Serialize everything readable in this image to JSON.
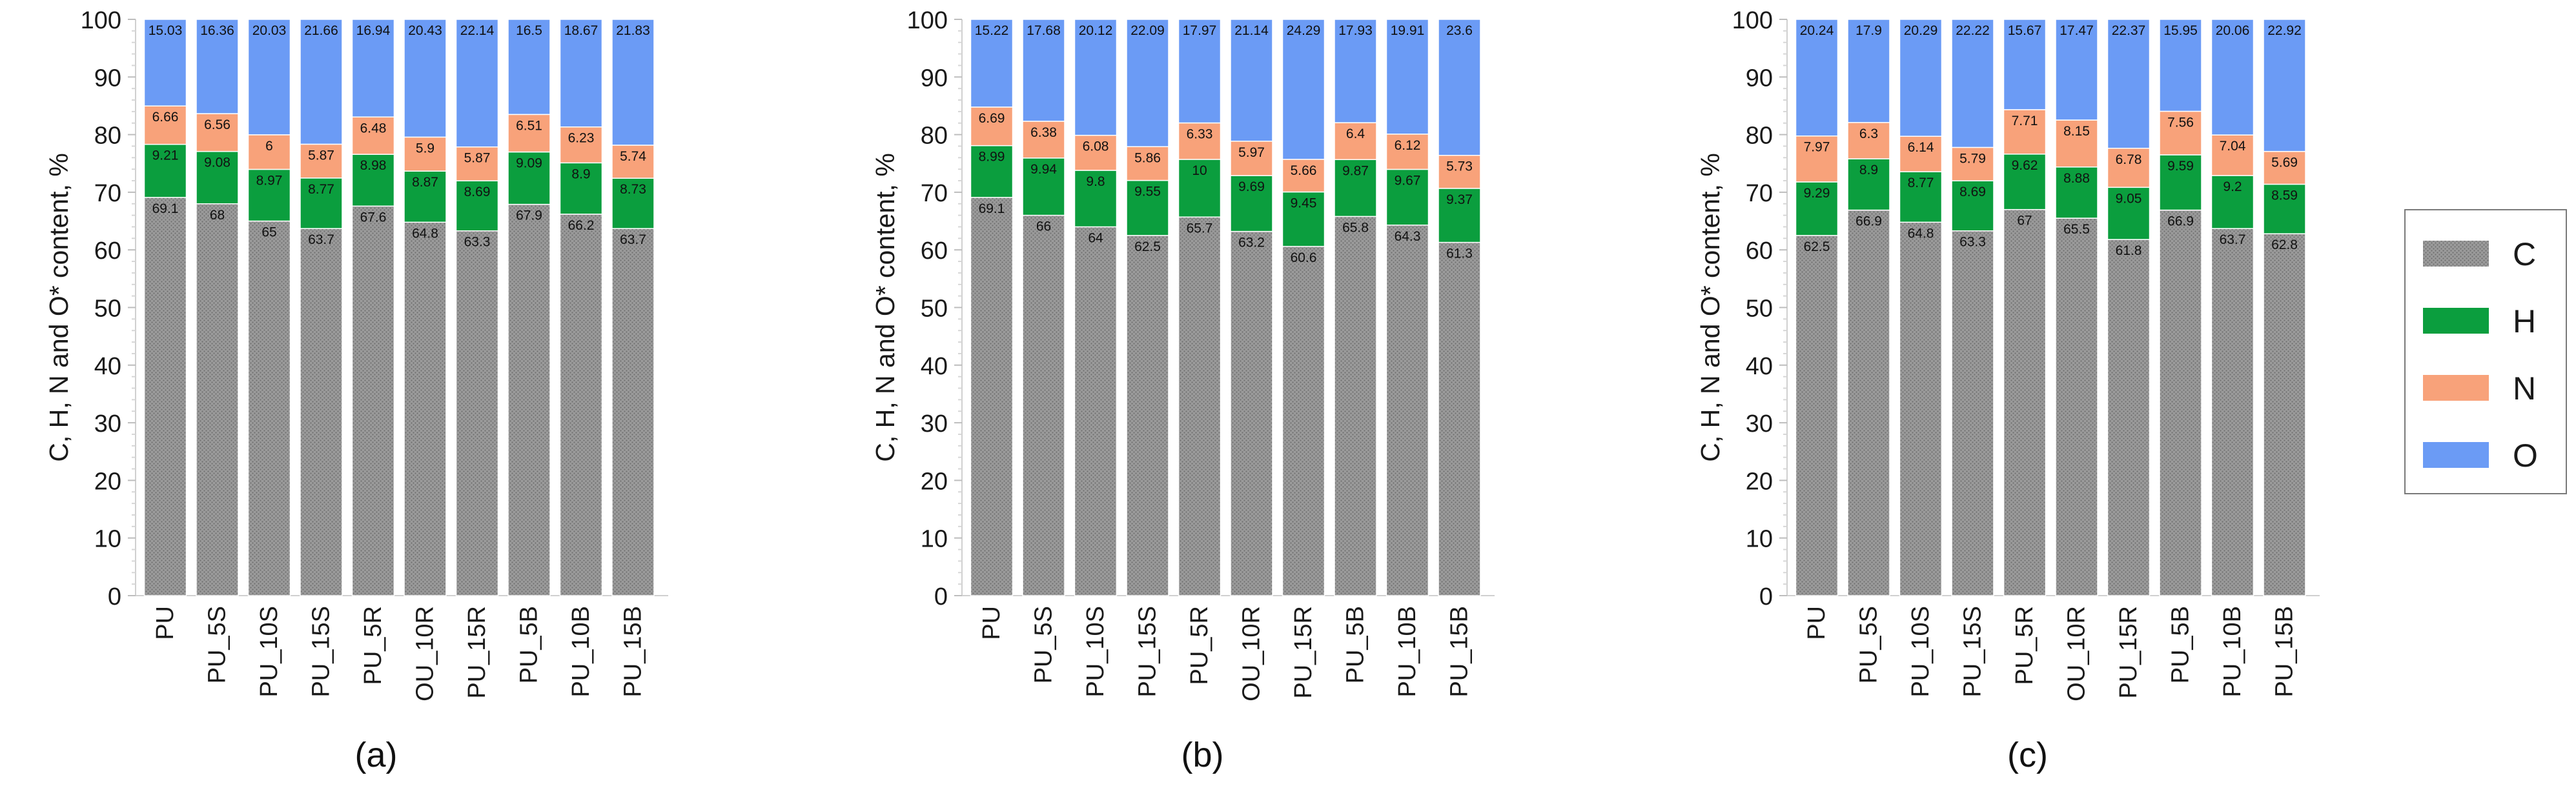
{
  "series_colors": {
    "C": "#999999",
    "H": "#0b9e3e",
    "N": "#f8a27a",
    "O": "#6b9bf5"
  },
  "legend": {
    "items": [
      "C",
      "H",
      "N",
      "O"
    ]
  },
  "chart_data": [
    {
      "type": "bar",
      "stacked": true,
      "panel_label": "(a)",
      "ylabel": "C, H, N and O* content, %",
      "ylim": [
        0,
        100
      ],
      "yticks": [
        0,
        10,
        20,
        30,
        40,
        50,
        60,
        70,
        80,
        90,
        100
      ],
      "categories": [
        "PU",
        "PU_5S",
        "PU_10S",
        "PU_15S",
        "PU_5R",
        "OU_10R",
        "PU_15R",
        "PU_5B",
        "PU_10B",
        "PU_15B"
      ],
      "series": [
        {
          "name": "C",
          "values": [
            69.1,
            68,
            65,
            63.7,
            67.6,
            64.8,
            63.3,
            67.9,
            66.2,
            63.7
          ],
          "labels": [
            "69.1",
            "68",
            "65",
            "63.7",
            "67.6",
            "64.8",
            "63.3",
            "67.9",
            "66.2",
            "63.7"
          ]
        },
        {
          "name": "H",
          "values": [
            9.21,
            9.08,
            8.97,
            8.77,
            8.98,
            8.87,
            8.69,
            9.09,
            8.9,
            8.73
          ],
          "labels": [
            "9.21",
            "9.08",
            "8.97",
            "8.77",
            "8.98",
            "8.87",
            "8.69",
            "9.09",
            "8.9",
            "8.73"
          ]
        },
        {
          "name": "N",
          "values": [
            6.66,
            6.56,
            6,
            5.87,
            6.48,
            5.9,
            5.87,
            6.51,
            6.23,
            5.74
          ],
          "labels": [
            "6.66",
            "6.56",
            "6",
            "5.87",
            "6.48",
            "5.9",
            "5.87",
            "6.51",
            "6.23",
            "5.74"
          ]
        },
        {
          "name": "O",
          "values": [
            15.03,
            16.36,
            20.03,
            21.66,
            16.94,
            20.43,
            22.14,
            16.5,
            18.67,
            21.83
          ],
          "labels": [
            "15.03",
            "16.36",
            "20.03",
            "21.66",
            "16.94",
            "20.43",
            "22.14",
            "16.5",
            "18.67",
            "21.83"
          ]
        }
      ]
    },
    {
      "type": "bar",
      "stacked": true,
      "panel_label": "(b)",
      "ylabel": "C, H, N and O* content, %",
      "ylim": [
        0,
        100
      ],
      "yticks": [
        0,
        10,
        20,
        30,
        40,
        50,
        60,
        70,
        80,
        90,
        100
      ],
      "categories": [
        "PU",
        "PU_5S",
        "PU_10S",
        "PU_15S",
        "PU_5R",
        "OU_10R",
        "PU_15R",
        "PU_5B",
        "PU_10B",
        "PU_15B"
      ],
      "series": [
        {
          "name": "C",
          "values": [
            69.1,
            66,
            64,
            62.5,
            65.7,
            63.2,
            60.6,
            65.8,
            64.3,
            61.3
          ],
          "labels": [
            "69.1",
            "66",
            "64",
            "62.5",
            "65.7",
            "63.2",
            "60.6",
            "65.8",
            "64.3",
            "61.3"
          ]
        },
        {
          "name": "H",
          "values": [
            8.99,
            9.94,
            9.8,
            9.55,
            10,
            9.69,
            9.45,
            9.87,
            9.67,
            9.37
          ],
          "labels": [
            "8.99",
            "9.94",
            "9.8",
            "9.55",
            "10",
            "9.69",
            "9.45",
            "9.87",
            "9.67",
            "9.37"
          ]
        },
        {
          "name": "N",
          "values": [
            6.69,
            6.38,
            6.08,
            5.86,
            6.33,
            5.97,
            5.66,
            6.4,
            6.12,
            5.73
          ],
          "labels": [
            "6.69",
            "6.38",
            "6.08",
            "5.86",
            "6.33",
            "5.97",
            "5.66",
            "6.4",
            "6.12",
            "5.73"
          ]
        },
        {
          "name": "O",
          "values": [
            15.22,
            17.68,
            20.12,
            22.09,
            17.97,
            21.14,
            24.29,
            17.93,
            19.91,
            23.6
          ],
          "labels": [
            "15.22",
            "17.68",
            "20.12",
            "22.09",
            "17.97",
            "21.14",
            "24.29",
            "17.93",
            "19.91",
            "23.6"
          ]
        }
      ]
    },
    {
      "type": "bar",
      "stacked": true,
      "panel_label": "(c)",
      "ylabel": "C, H, N and O* content, %",
      "ylim": [
        0,
        100
      ],
      "yticks": [
        0,
        10,
        20,
        30,
        40,
        50,
        60,
        70,
        80,
        90,
        100
      ],
      "categories": [
        "PU",
        "PU_5S",
        "PU_10S",
        "PU_15S",
        "PU_5R",
        "OU_10R",
        "PU_15R",
        "PU_5B",
        "PU_10B",
        "PU_15B"
      ],
      "series": [
        {
          "name": "C",
          "values": [
            62.5,
            66.9,
            64.8,
            63.3,
            67,
            65.5,
            61.8,
            66.9,
            63.7,
            62.8
          ],
          "labels": [
            "62.5",
            "66.9",
            "64.8",
            "63.3",
            "67",
            "65.5",
            "61.8",
            "66.9",
            "63.7",
            "62.8"
          ]
        },
        {
          "name": "H",
          "values": [
            9.29,
            8.9,
            8.77,
            8.69,
            9.62,
            8.88,
            9.05,
            9.59,
            9.2,
            8.59
          ],
          "labels": [
            "9.29",
            "8.9",
            "8.77",
            "8.69",
            "9.62",
            "8.88",
            "9.05",
            "9.59",
            "9.2",
            "8.59"
          ]
        },
        {
          "name": "N",
          "values": [
            7.97,
            6.3,
            6.14,
            5.79,
            7.71,
            8.15,
            6.78,
            7.56,
            7.04,
            5.69
          ],
          "labels": [
            "7.97",
            "6.3",
            "6.14",
            "5.79",
            "7.71",
            "8.15",
            "6.78",
            "7.56",
            "7.04",
            "5.69"
          ]
        },
        {
          "name": "O",
          "values": [
            20.24,
            17.9,
            20.29,
            22.22,
            15.67,
            17.47,
            22.37,
            15.95,
            20.06,
            22.92
          ],
          "labels": [
            "20.24",
            "17.9",
            "20.29",
            "22.22",
            "15.67",
            "17.47",
            "22.37",
            "15.95",
            "20.06",
            "22.92"
          ]
        }
      ]
    }
  ]
}
